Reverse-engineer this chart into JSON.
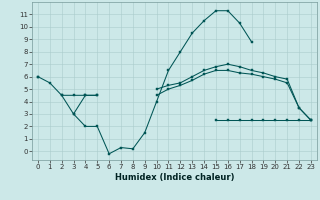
{
  "title": "",
  "xlabel": "Humidex (Indice chaleur)",
  "x": [
    0,
    1,
    2,
    3,
    4,
    5,
    6,
    7,
    8,
    9,
    10,
    11,
    12,
    13,
    14,
    15,
    16,
    17,
    18,
    19,
    20,
    21,
    22,
    23
  ],
  "line_main": [
    null,
    null,
    null,
    null,
    null,
    null,
    null,
    null,
    null,
    null,
    null,
    null,
    null,
    null,
    null,
    11.3,
    11.3,
    10.3,
    8.8,
    null,
    null,
    null,
    null,
    null
  ],
  "line_peak": [
    null,
    null,
    null,
    3.0,
    2.0,
    2.0,
    -0.2,
    0.3,
    0.2,
    1.5,
    4.0,
    6.5,
    8.0,
    9.5,
    10.5,
    11.3,
    11.3,
    10.3,
    8.8,
    null,
    null,
    null,
    null,
    null
  ],
  "line_upper": [
    6.0,
    5.5,
    4.5,
    4.5,
    4.5,
    4.5,
    null,
    null,
    null,
    null,
    5.0,
    5.3,
    5.5,
    6.0,
    6.5,
    6.8,
    7.0,
    6.8,
    6.5,
    6.3,
    6.0,
    5.8,
    3.5,
    2.5
  ],
  "line_mid": [
    6.0,
    null,
    4.5,
    3.0,
    4.5,
    4.5,
    null,
    null,
    null,
    null,
    4.5,
    5.0,
    5.3,
    5.7,
    6.2,
    6.5,
    6.5,
    6.3,
    6.2,
    6.0,
    5.8,
    5.5,
    3.5,
    2.5
  ],
  "line_lower": [
    null,
    null,
    null,
    null,
    null,
    null,
    null,
    null,
    null,
    null,
    null,
    null,
    null,
    null,
    null,
    2.5,
    2.5,
    2.5,
    2.5,
    2.5,
    2.5,
    2.5,
    2.5,
    2.5
  ],
  "bg_color": "#cce8e8",
  "grid_color": "#aacccc",
  "line_color": "#005555",
  "ylim": [
    -0.7,
    12.0
  ],
  "xlim": [
    -0.5,
    23.5
  ],
  "yticks": [
    0,
    1,
    2,
    3,
    4,
    5,
    6,
    7,
    8,
    9,
    10,
    11
  ],
  "xticks": [
    0,
    1,
    2,
    3,
    4,
    5,
    6,
    7,
    8,
    9,
    10,
    11,
    12,
    13,
    14,
    15,
    16,
    17,
    18,
    19,
    20,
    21,
    22,
    23
  ],
  "tick_fontsize": 5.0,
  "xlabel_fontsize": 6.0
}
